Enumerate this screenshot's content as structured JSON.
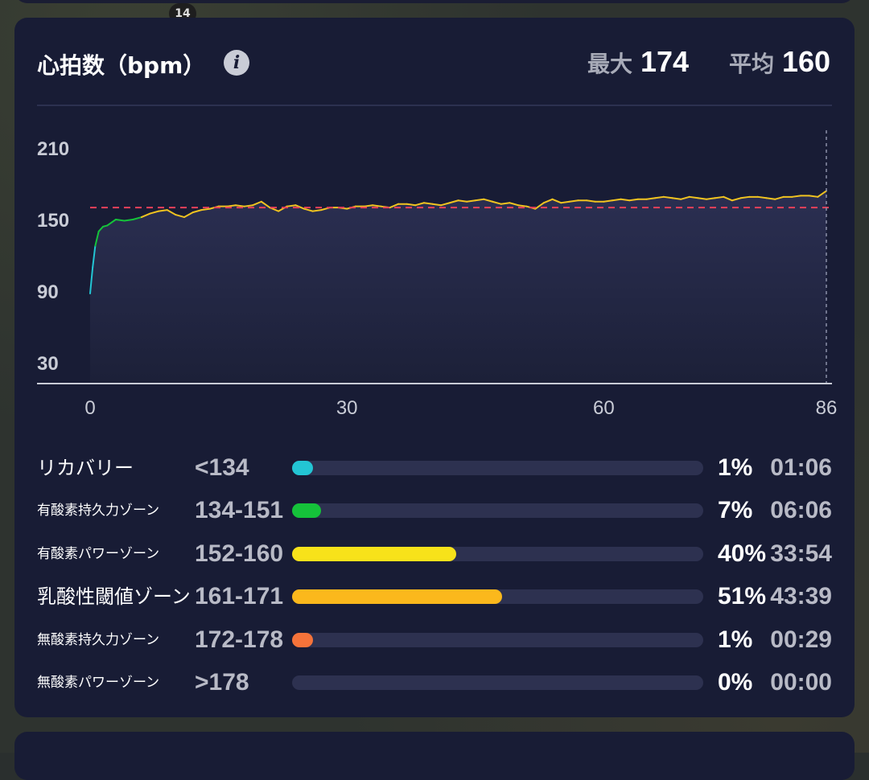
{
  "map": {
    "badge": "14"
  },
  "header": {
    "title": "心拍数（bpm）",
    "max_label": "最大",
    "max_value": "174",
    "avg_label": "平均",
    "avg_value": "160"
  },
  "chart_data": {
    "type": "line",
    "title": "心拍数（bpm）",
    "xlabel": "",
    "ylabel": "",
    "x_ticks": [
      0,
      30,
      60,
      86
    ],
    "y_ticks": [
      30,
      90,
      150,
      210
    ],
    "xlim": [
      0,
      86
    ],
    "ylim": [
      0,
      220
    ],
    "reference_line": {
      "value": 160,
      "style": "dashed",
      "color": "#e8405a"
    },
    "series": [
      {
        "x": [
          0,
          0.3,
          0.6,
          1,
          1.5,
          2,
          3,
          4,
          5,
          6,
          7,
          8,
          9,
          10,
          11,
          12,
          13,
          14,
          15,
          16,
          17,
          18,
          19,
          20,
          21,
          22,
          23,
          24,
          25,
          26,
          27,
          28,
          29,
          30,
          31,
          32,
          33,
          34,
          35,
          36,
          37,
          38,
          39,
          40,
          41,
          42,
          43,
          44,
          45,
          46,
          47,
          48,
          49,
          50,
          51,
          52,
          53,
          54,
          55,
          56,
          57,
          58,
          59,
          60,
          61,
          62,
          63,
          64,
          65,
          66,
          67,
          68,
          69,
          70,
          71,
          72,
          73,
          74,
          75,
          76,
          77,
          78,
          79,
          80,
          81,
          82,
          83,
          84,
          85,
          86
        ],
        "y": [
          88,
          110,
          128,
          140,
          144,
          145,
          150,
          149,
          150,
          152,
          155,
          157,
          158,
          154,
          152,
          156,
          158,
          159,
          161,
          161,
          162,
          161,
          162,
          165,
          160,
          157,
          161,
          162,
          159,
          157,
          158,
          160,
          160,
          159,
          161,
          161,
          162,
          161,
          160,
          163,
          163,
          162,
          164,
          163,
          162,
          164,
          166,
          165,
          166,
          167,
          165,
          163,
          164,
          162,
          161,
          159,
          164,
          167,
          164,
          165,
          166,
          166,
          165,
          165,
          166,
          167,
          166,
          167,
          167,
          168,
          169,
          168,
          167,
          169,
          168,
          167,
          168,
          169,
          166,
          168,
          169,
          169,
          168,
          167,
          169,
          169,
          170,
          170,
          169,
          174
        ]
      }
    ],
    "colors": {
      "line_low": "#23c5d4",
      "line_mid": "#15c23a",
      "line_high": "#f0c320",
      "fill_top": "#2b2f52",
      "fill_bottom": "#1c2038",
      "axis": "#c9ccd6",
      "marker": "#8a8fa8"
    }
  },
  "zones": [
    {
      "name": "リカバリー",
      "size": "big",
      "range": "<134",
      "percent_label": "1%",
      "fraction": 0.01,
      "time": "01:06",
      "color": "#23c5d4"
    },
    {
      "name": "有酸素持久力ゾーン",
      "size": "small",
      "range": "134-151",
      "percent_label": "7%",
      "fraction": 0.07,
      "time": "06:06",
      "color": "#15c23a"
    },
    {
      "name": "有酸素パワーゾーン",
      "size": "small",
      "range": "152-160",
      "percent_label": "40%",
      "fraction": 0.4,
      "time": "33:54",
      "color": "#f7e21a"
    },
    {
      "name": "乳酸性閾値ゾーン",
      "size": "big",
      "range": "161-171",
      "percent_label": "51%",
      "fraction": 0.51,
      "time": "43:39",
      "color": "#fbb81c"
    },
    {
      "name": "無酸素持久力ゾーン",
      "size": "small",
      "range": "172-178",
      "percent_label": "1%",
      "fraction": 0.01,
      "time": "00:29",
      "color": "#f5733a"
    },
    {
      "name": "無酸素パワーゾーン",
      "size": "small",
      "range": ">178",
      "percent_label": "0%",
      "fraction": 0.0,
      "time": "00:00",
      "color": "#2d3150"
    }
  ]
}
